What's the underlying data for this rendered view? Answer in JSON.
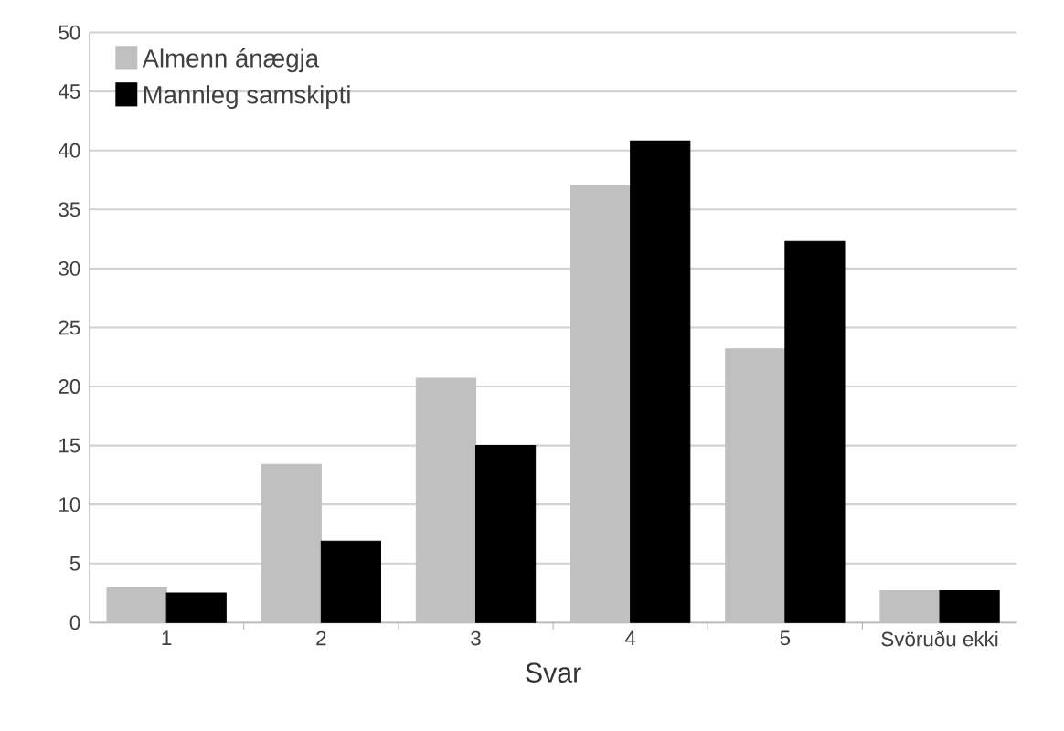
{
  "chart_data": {
    "type": "bar",
    "xlabel": "Svar",
    "categories": [
      "1",
      "2",
      "3",
      "4",
      "5",
      "Svöruðu ekki"
    ],
    "series": [
      {
        "name": "Almenn ánægja",
        "color": "#c0c0c0",
        "values": [
          3.0,
          13.4,
          20.7,
          37.0,
          23.2,
          2.7
        ]
      },
      {
        "name": "Mannleg samskipti",
        "color": "#000000",
        "values": [
          2.5,
          6.9,
          15.0,
          40.8,
          32.3,
          2.7
        ]
      }
    ],
    "ylim": [
      0,
      50
    ],
    "yticks": [
      0,
      5,
      10,
      15,
      20,
      25,
      30,
      35,
      40,
      45,
      50
    ],
    "grid": "y",
    "legend": "top left"
  }
}
